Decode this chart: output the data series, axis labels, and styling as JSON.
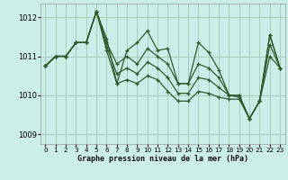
{
  "title": "Graphe pression niveau de la mer (hPa)",
  "bg_color": "#cceee8",
  "grid_color": "#aaccbb",
  "line_color": "#2d5a2d",
  "ylim": [
    1008.75,
    1012.35
  ],
  "yticks": [
    1009,
    1010,
    1011,
    1012
  ],
  "xlim": [
    -0.5,
    23.5
  ],
  "xticks": [
    0,
    1,
    2,
    3,
    4,
    5,
    6,
    7,
    8,
    9,
    10,
    11,
    12,
    13,
    14,
    15,
    16,
    17,
    18,
    19,
    20,
    21,
    22,
    23
  ],
  "series": [
    [
      1010.75,
      1011.0,
      1011.0,
      1011.35,
      1011.35,
      1012.15,
      1011.45,
      1010.3,
      1011.15,
      1011.35,
      1011.65,
      1011.15,
      1011.2,
      1010.3,
      1010.3,
      1011.35,
      1011.1,
      1010.65,
      1010.0,
      1010.0,
      1009.4,
      1009.85,
      1011.55,
      1010.7
    ],
    [
      1010.75,
      1011.0,
      1011.0,
      1011.35,
      1011.35,
      1012.15,
      1011.35,
      1010.8,
      1011.0,
      1010.8,
      1011.2,
      1011.0,
      1010.8,
      1010.3,
      1010.3,
      1010.8,
      1010.7,
      1010.45,
      1010.0,
      1010.0,
      1009.4,
      1009.85,
      1011.55,
      1010.7
    ],
    [
      1010.75,
      1011.0,
      1011.0,
      1011.35,
      1011.35,
      1012.15,
      1011.25,
      1010.55,
      1010.7,
      1010.55,
      1010.85,
      1010.7,
      1010.45,
      1010.05,
      1010.05,
      1010.45,
      1010.4,
      1010.2,
      1010.0,
      1009.95,
      1009.4,
      1009.85,
      1011.3,
      1010.7
    ],
    [
      1010.75,
      1011.0,
      1011.0,
      1011.35,
      1011.35,
      1012.15,
      1011.15,
      1010.3,
      1010.4,
      1010.3,
      1010.5,
      1010.4,
      1010.1,
      1009.85,
      1009.85,
      1010.1,
      1010.05,
      1009.95,
      1009.9,
      1009.9,
      1009.4,
      1009.85,
      1011.0,
      1010.7
    ]
  ]
}
